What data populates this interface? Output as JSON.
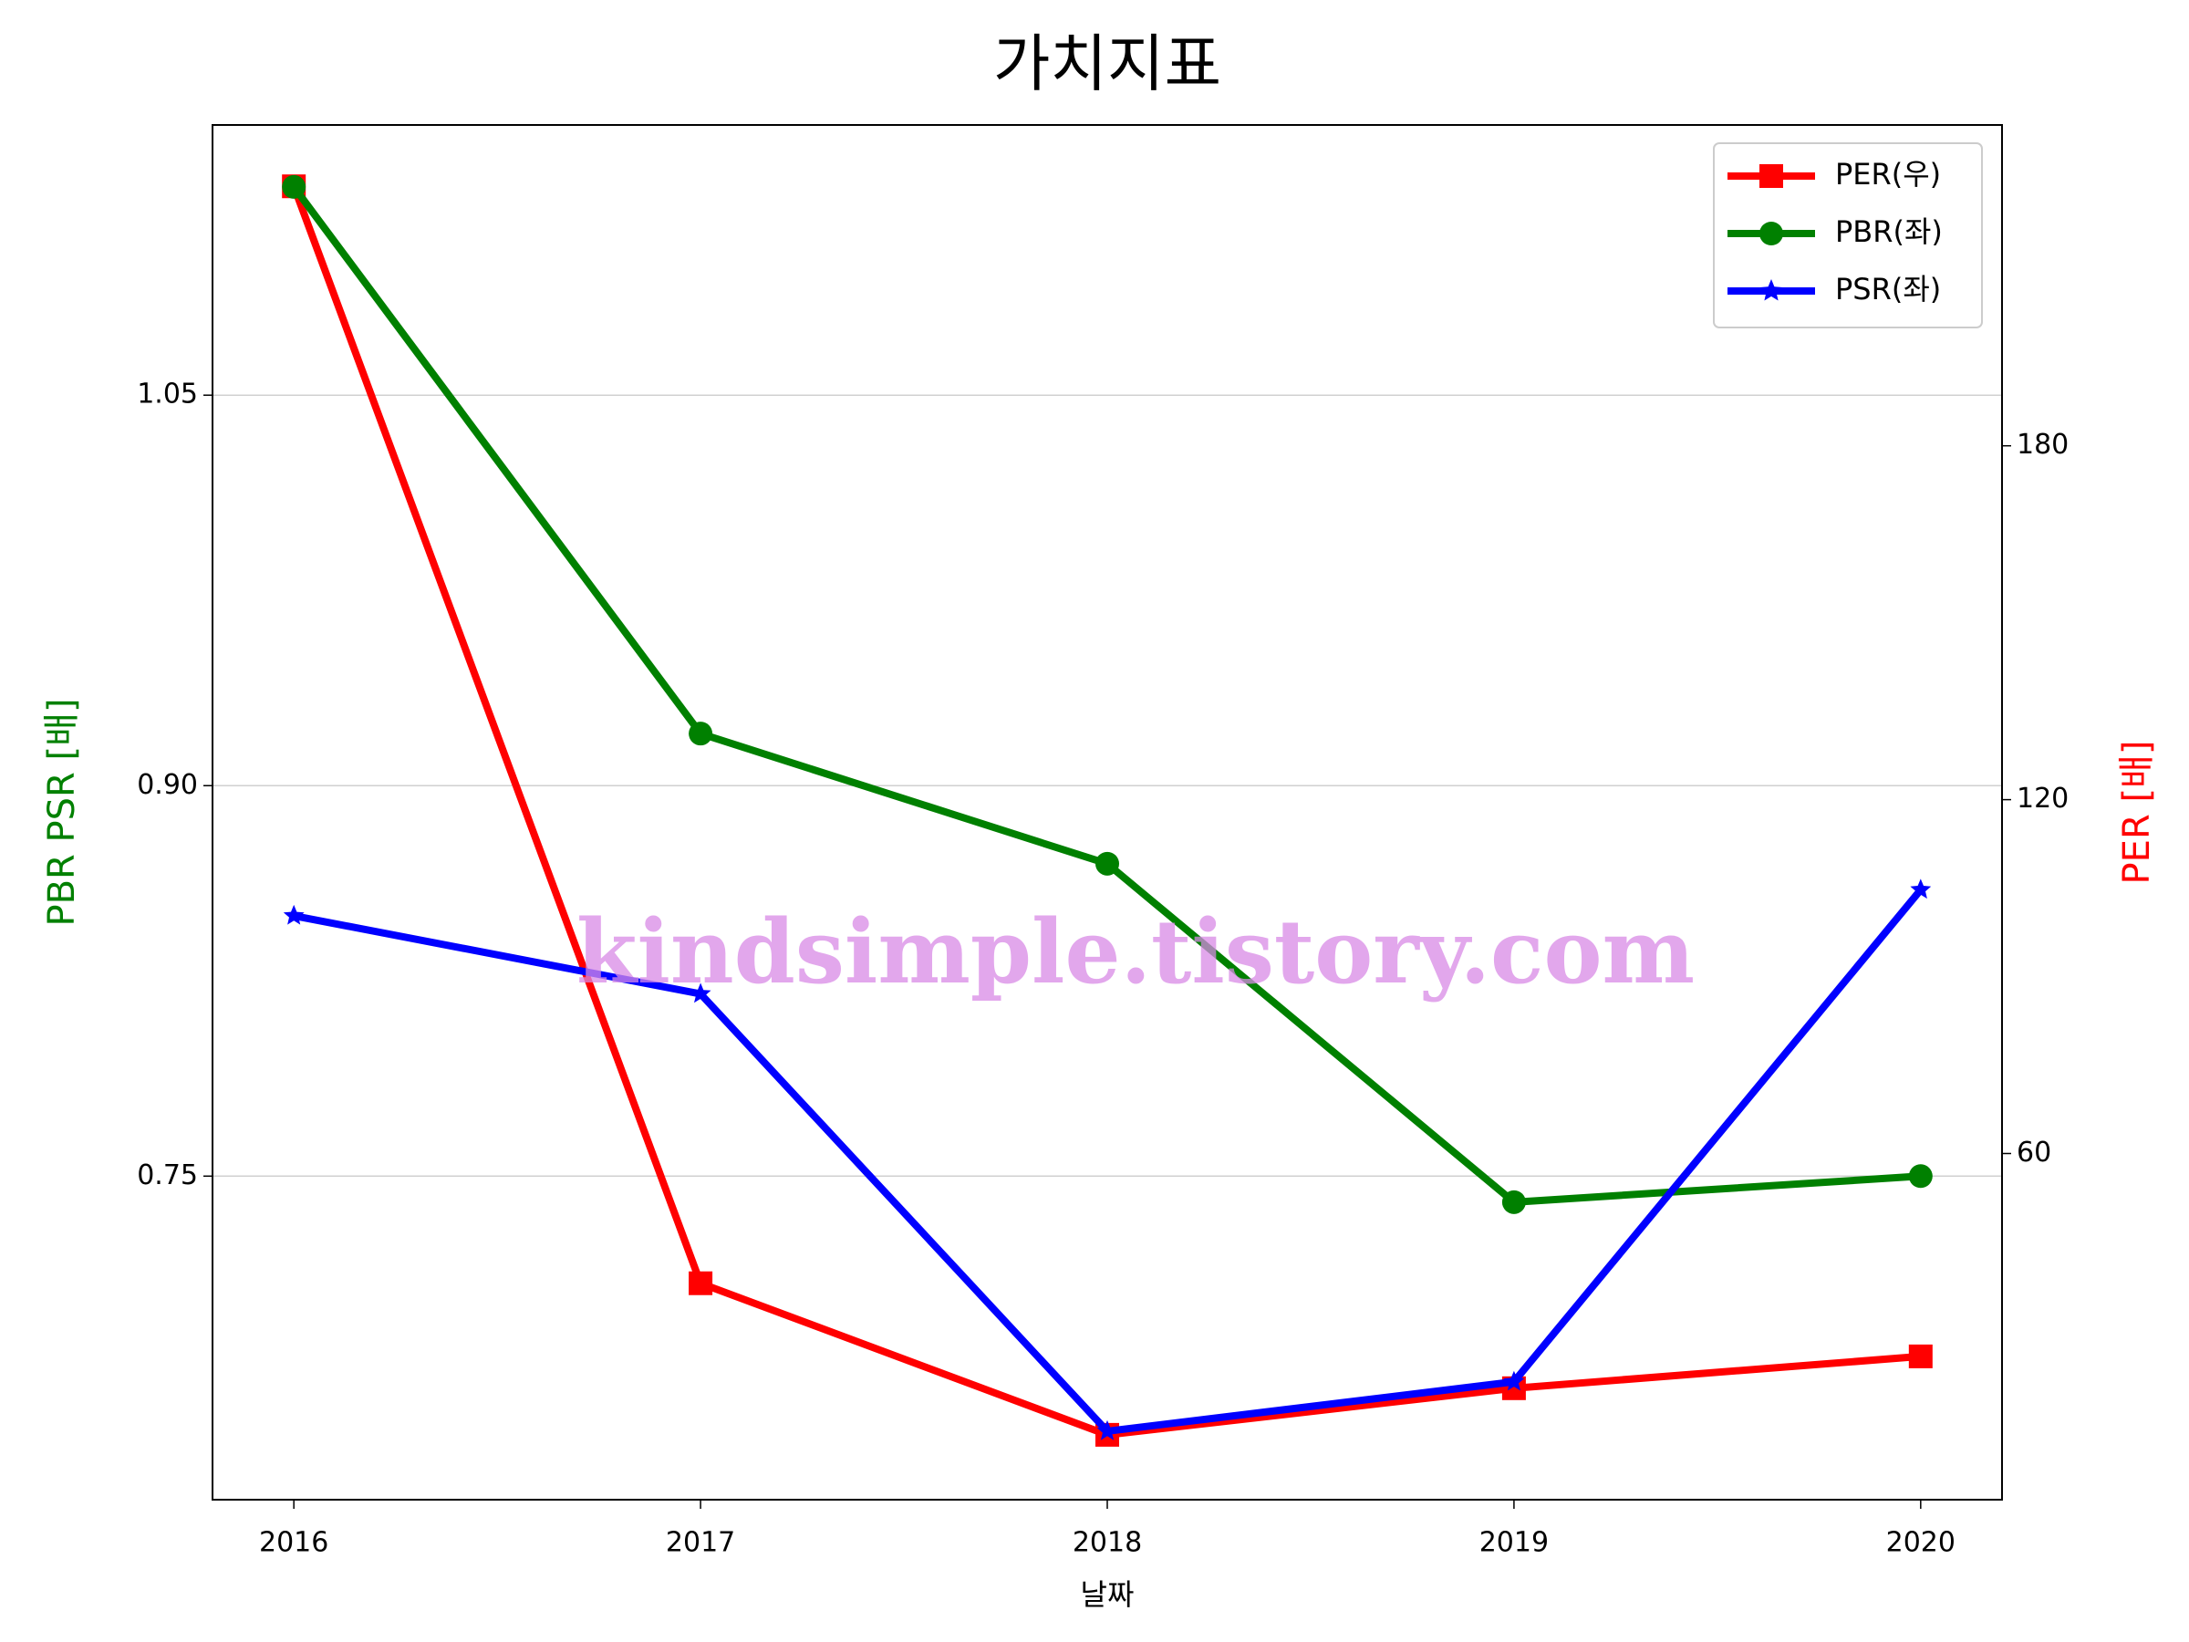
{
  "chart_data": {
    "type": "line",
    "title": "가치지표",
    "x_label": "날짜",
    "y_label": "PBR PSR [배]",
    "y2_label": "PER [배]",
    "categories": [
      "2016",
      "2017",
      "2018",
      "2019",
      "2020"
    ],
    "series": [
      {
        "name": "PER(우)",
        "color": "#ff0000",
        "marker": "square",
        "axis": "y2",
        "values": [
          224,
          38,
          12.3,
          20.2,
          25.6
        ]
      },
      {
        "name": "PBR(좌)",
        "color": "#008000",
        "marker": "circle",
        "values": [
          1.13,
          0.92,
          0.87,
          0.74,
          0.75
        ]
      },
      {
        "name": "PSR(좌)",
        "color": "#0000ff",
        "marker": "star",
        "values": [
          0.85,
          0.82,
          0.652,
          0.671,
          0.86
        ]
      }
    ],
    "ylim": [
      0.6257,
      1.1538
    ],
    "yticks": [
      0.75,
      {
        "value": 0.9,
        "label": "0.90"
      },
      1.05
    ],
    "y2lim": [
      1.3,
      234.4
    ],
    "y2ticks": [
      60,
      120,
      180
    ],
    "y_label_color": "#008000",
    "y2_label_color": "#ff0000",
    "grid": true,
    "legend": "upper right",
    "watermark": "kindsimple.tistory.com"
  }
}
